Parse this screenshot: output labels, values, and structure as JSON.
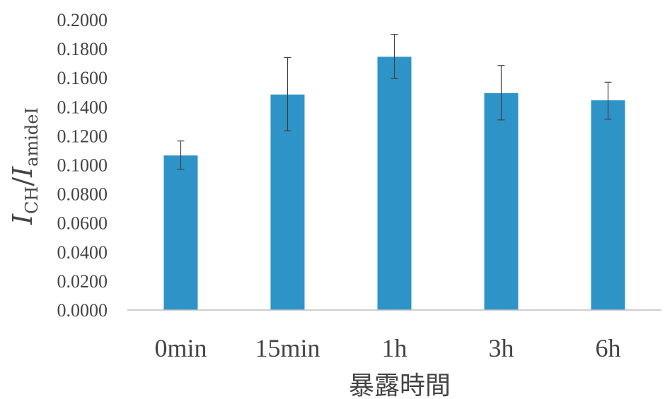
{
  "chart_data": {
    "type": "bar",
    "title": "",
    "xlabel": "暴露時間",
    "ylabel": {
      "var1": "I",
      "sub1": "CH",
      "slash": "/",
      "var2": "I",
      "sub2": "amideI"
    },
    "categories": [
      "0min",
      "15min",
      "1h",
      "3h",
      "6h"
    ],
    "values": [
      0.1065,
      0.1485,
      0.1745,
      0.1495,
      0.1445
    ],
    "error_plus": [
      0.01,
      0.0255,
      0.0155,
      0.019,
      0.0125
    ],
    "error_minus": [
      0.0095,
      0.025,
      0.015,
      0.0185,
      0.013
    ],
    "ylim": [
      0,
      0.2
    ],
    "yticks": [
      "0.0000",
      "0.0200",
      "0.0400",
      "0.0600",
      "0.0800",
      "0.1000",
      "0.1200",
      "0.1400",
      "0.1600",
      "0.1800",
      "0.2000"
    ],
    "grid": false,
    "legend": "none",
    "bar_color": "#2e94c8",
    "error_bar_color": "#404040",
    "axis_color": "#bfbfbf"
  }
}
